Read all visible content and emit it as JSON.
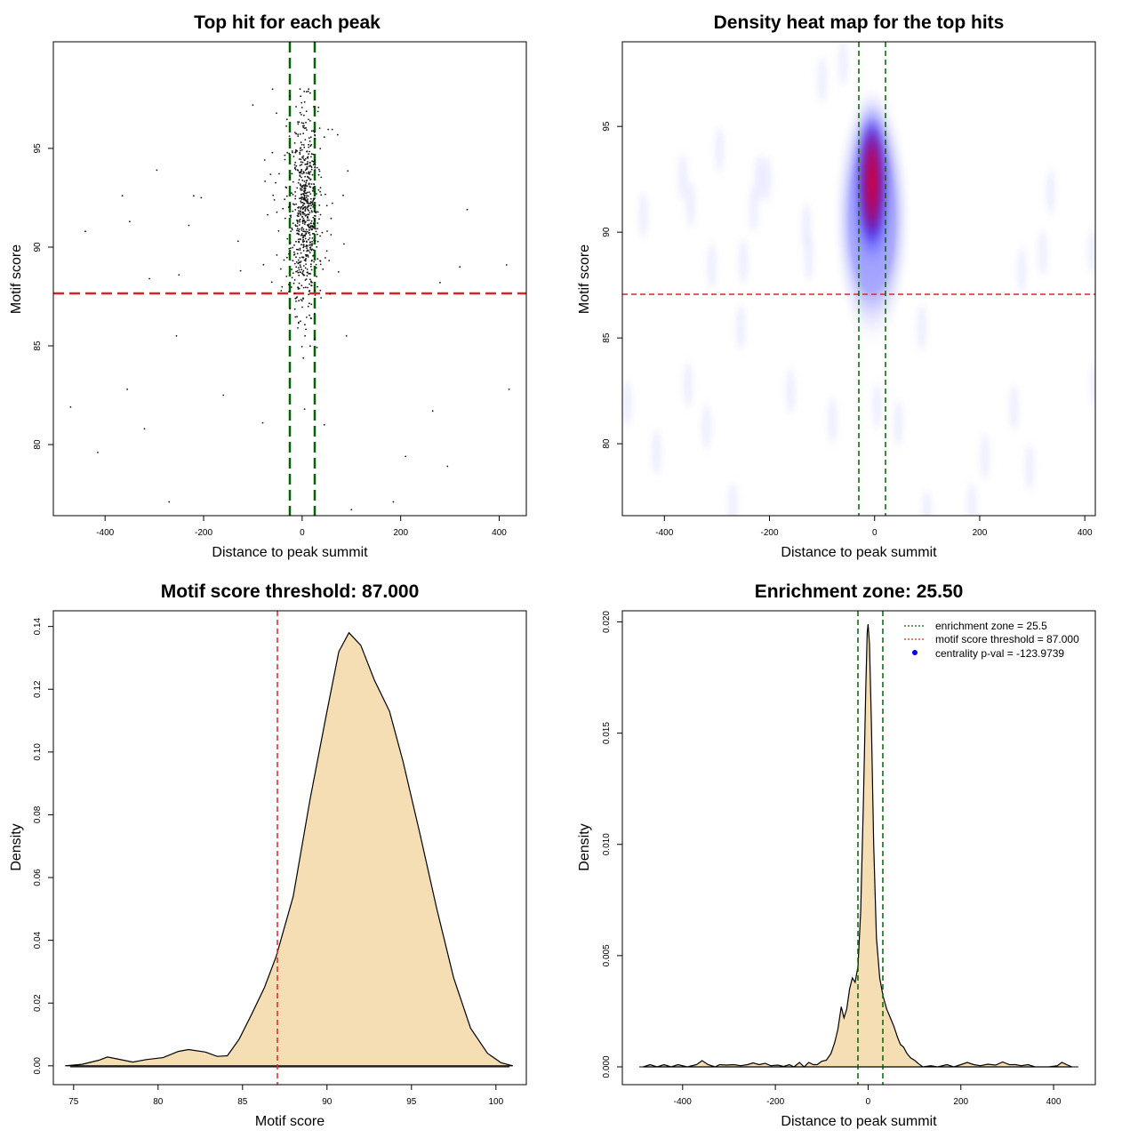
{
  "colors": {
    "threshold_line": "#d62728",
    "zone_line": "#006400",
    "density_fill": "#f5deb3",
    "points": "#000000",
    "heat_low": "#ffffff",
    "heat_mid": "#0000ff",
    "heat_high": "#ff0000"
  },
  "chart_data": [
    {
      "type": "scatter",
      "title": "Top hit for each peak",
      "xlabel": "Distance to peak summit",
      "ylabel": "Motif score",
      "xlim": [
        -505,
        455
      ],
      "ylim": [
        76.4,
        100.4
      ],
      "xticks": [
        "-400",
        "-200",
        "0",
        "200",
        "400"
      ],
      "yticks": [
        "80",
        "85",
        "90",
        "95"
      ],
      "hlines": [
        87.0
      ],
      "vlines": [
        -25.5,
        25.5
      ],
      "outliers": [
        [
          -470,
          81.9
        ],
        [
          -440,
          90.8
        ],
        [
          -415,
          79.6
        ],
        [
          -365,
          92.6
        ],
        [
          -355,
          82.8
        ],
        [
          -350,
          91.3
        ],
        [
          -320,
          80.8
        ],
        [
          -310,
          88.4
        ],
        [
          -295,
          93.9
        ],
        [
          -270,
          77.1
        ],
        [
          -255,
          85.5
        ],
        [
          -250,
          88.6
        ],
        [
          -230,
          91.1
        ],
        [
          -220,
          92.6
        ],
        [
          -205,
          92.5
        ],
        [
          -160,
          82.5
        ],
        [
          -130,
          90.3
        ],
        [
          -125,
          88.8
        ],
        [
          -100,
          97.2
        ],
        [
          -80,
          81.1
        ],
        [
          -60,
          98.0
        ],
        [
          5,
          81.8
        ],
        [
          45,
          81.0
        ],
        [
          90,
          85.5
        ],
        [
          100,
          76.7
        ],
        [
          185,
          77.1
        ],
        [
          210,
          79.4
        ],
        [
          265,
          81.7
        ],
        [
          280,
          88.2
        ],
        [
          295,
          78.9
        ],
        [
          320,
          89.0
        ],
        [
          335,
          91.9
        ],
        [
          415,
          89.1
        ],
        [
          420,
          82.8
        ]
      ]
    },
    {
      "type": "heatmap",
      "title": "Density heat map for the top hits",
      "xlabel": "Distance to peak summit",
      "ylabel": "Motif score",
      "xlim": [
        -480,
        420
      ],
      "ylim": [
        76.6,
        99
      ],
      "xticks": [
        "-400",
        "-200",
        "0",
        "200",
        "400"
      ],
      "yticks": [
        "80",
        "85",
        "90",
        "95"
      ],
      "hlines": [
        87.0
      ],
      "vlines": [
        -25.5,
        25.5
      ],
      "peak": {
        "x": 0,
        "y": 92
      }
    },
    {
      "type": "area",
      "title": "Motif score threshold: 87.000",
      "xlabel": "Motif score",
      "ylabel": "Density",
      "xlim": [
        73.8,
        101.8
      ],
      "ylim": [
        -0.006,
        0.145
      ],
      "xticks": [
        "75",
        "80",
        "85",
        "90",
        "95",
        "100"
      ],
      "yticks": [
        "0.00",
        "0.02",
        "0.04",
        "0.06",
        "0.08",
        "0.10",
        "0.12",
        "0.14"
      ],
      "vlines": [
        87.0
      ],
      "points": [
        [
          74.5,
          0.0
        ],
        [
          75.5,
          0.0005
        ],
        [
          76.5,
          0.0018
        ],
        [
          77.0,
          0.0028
        ],
        [
          77.6,
          0.0022
        ],
        [
          78.5,
          0.0012
        ],
        [
          79.3,
          0.002
        ],
        [
          80.3,
          0.0026
        ],
        [
          81.2,
          0.0046
        ],
        [
          81.8,
          0.0052
        ],
        [
          82.8,
          0.0044
        ],
        [
          83.5,
          0.003
        ],
        [
          84.1,
          0.0032
        ],
        [
          84.8,
          0.0085
        ],
        [
          85.5,
          0.016
        ],
        [
          86.3,
          0.025
        ],
        [
          87.0,
          0.035
        ],
        [
          88.0,
          0.054
        ],
        [
          89.0,
          0.085
        ],
        [
          90.0,
          0.113
        ],
        [
          90.7,
          0.132
        ],
        [
          91.3,
          0.138
        ],
        [
          92.0,
          0.134
        ],
        [
          92.8,
          0.123
        ],
        [
          93.7,
          0.113
        ],
        [
          94.5,
          0.097
        ],
        [
          95.5,
          0.074
        ],
        [
          96.5,
          0.05
        ],
        [
          97.5,
          0.028
        ],
        [
          98.5,
          0.012
        ],
        [
          99.5,
          0.004
        ],
        [
          100.3,
          0.001
        ],
        [
          101.0,
          0.0
        ]
      ]
    },
    {
      "type": "area",
      "title": "Enrichment zone: 25.50",
      "xlabel": "Distance to peak summit",
      "ylabel": "Density",
      "xlim": [
        -530,
        490
      ],
      "ylim": [
        -0.0008,
        0.0205
      ],
      "xticks": [
        "-400",
        "-200",
        "0",
        "200",
        "400"
      ],
      "yticks": [
        "0.000",
        "0.005",
        "0.010",
        "0.015",
        "0.020"
      ],
      "vlines": [
        -25.5,
        25.5
      ],
      "legend": {
        "position": "top-right",
        "entries": [
          {
            "label": "enrichment zone = 25.5",
            "color": "#006400",
            "kind": "line"
          },
          {
            "label": "motif score threshold = 87.000",
            "color": "#d62728",
            "kind": "line"
          },
          {
            "label": "centrality p-val = -123.9739",
            "color": "#0000ff",
            "kind": "point"
          }
        ]
      },
      "points": [
        [
          -485,
          0
        ],
        [
          -470,
          0.0001
        ],
        [
          -455,
          0
        ],
        [
          -440,
          0.0001
        ],
        [
          -425,
          0
        ],
        [
          -410,
          0.0001
        ],
        [
          -390,
          0
        ],
        [
          -370,
          0.0001
        ],
        [
          -358,
          0.00028
        ],
        [
          -345,
          0.0001
        ],
        [
          -330,
          0
        ],
        [
          -320,
          0.0001
        ],
        [
          -305,
          8e-05
        ],
        [
          -290,
          0.0001
        ],
        [
          -275,
          5e-05
        ],
        [
          -260,
          0.0001
        ],
        [
          -248,
          0.00018
        ],
        [
          -235,
          0.0001
        ],
        [
          -222,
          0.00016
        ],
        [
          -210,
          5e-05
        ],
        [
          -195,
          8e-05
        ],
        [
          -182,
          2e-05
        ],
        [
          -170,
          0.0001
        ],
        [
          -160,
          0
        ],
        [
          -148,
          0.0002
        ],
        [
          -138,
          0
        ],
        [
          -128,
          0.0002
        ],
        [
          -118,
          0.0001
        ],
        [
          -110,
          0.0001
        ],
        [
          -100,
          0.00025
        ],
        [
          -90,
          0.0003
        ],
        [
          -80,
          0.0006
        ],
        [
          -72,
          0.0011
        ],
        [
          -65,
          0.0017
        ],
        [
          -58,
          0.0027
        ],
        [
          -52,
          0.0022
        ],
        [
          -46,
          0.0026
        ],
        [
          -40,
          0.0035
        ],
        [
          -34,
          0.004
        ],
        [
          -28,
          0.0038
        ],
        [
          -22,
          0.0045
        ],
        [
          -16,
          0.007
        ],
        [
          -10,
          0.012
        ],
        [
          -5,
          0.017
        ],
        [
          -2,
          0.0195
        ],
        [
          0,
          0.0199
        ],
        [
          3,
          0.019
        ],
        [
          7,
          0.0155
        ],
        [
          12,
          0.01
        ],
        [
          18,
          0.0058
        ],
        [
          25,
          0.004
        ],
        [
          32,
          0.0032
        ],
        [
          40,
          0.0026
        ],
        [
          48,
          0.0022
        ],
        [
          56,
          0.0018
        ],
        [
          64,
          0.0013
        ],
        [
          70,
          0.001
        ],
        [
          76,
          0.0009
        ],
        [
          84,
          0.0006
        ],
        [
          92,
          0.0004
        ],
        [
          100,
          0.0003
        ],
        [
          108,
          0.00015
        ],
        [
          118,
          0
        ],
        [
          135,
          5e-05
        ],
        [
          150,
          0
        ],
        [
          170,
          0.0001
        ],
        [
          185,
          0
        ],
        [
          200,
          0.0001
        ],
        [
          214,
          0.0002
        ],
        [
          228,
          0.0001
        ],
        [
          242,
          5e-05
        ],
        [
          258,
          0.00012
        ],
        [
          275,
          8e-05
        ],
        [
          290,
          0.00022
        ],
        [
          305,
          0.0001
        ],
        [
          318,
          0.0001
        ],
        [
          330,
          5e-05
        ],
        [
          345,
          0.0001
        ],
        [
          360,
          0
        ],
        [
          390,
          0
        ],
        [
          408,
          5e-05
        ],
        [
          418,
          0.0002
        ],
        [
          428,
          0.0001
        ],
        [
          440,
          0
        ]
      ]
    }
  ]
}
